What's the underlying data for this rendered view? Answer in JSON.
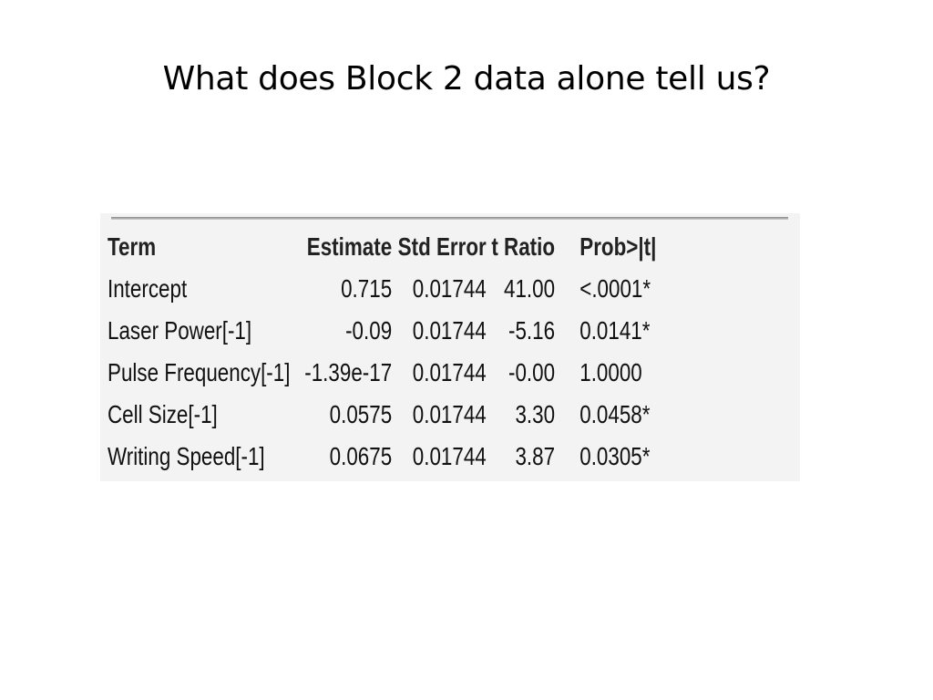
{
  "slide": {
    "title": "What does Block 2 data alone tell us?"
  },
  "table": {
    "headers": {
      "term": "Term",
      "estimate": "Estimate",
      "std_error": "Std Error",
      "t_ratio": "t Ratio",
      "prob": "Prob>|t|"
    },
    "rows": [
      {
        "term": "Intercept",
        "estimate": "0.715",
        "std_error": "0.01744",
        "t_ratio": "41.00",
        "prob": "<.0001*"
      },
      {
        "term": "Laser Power[-1]",
        "estimate": "-0.09",
        "std_error": "0.01744",
        "t_ratio": "-5.16",
        "prob": "0.0141*"
      },
      {
        "term": "Pulse Frequency[-1]",
        "estimate": "-1.39e-17",
        "std_error": "0.01744",
        "t_ratio": "-0.00",
        "prob": "1.0000"
      },
      {
        "term": "Cell Size[-1]",
        "estimate": "0.0575",
        "std_error": "0.01744",
        "t_ratio": "3.30",
        "prob": "0.0458*"
      },
      {
        "term": "Writing Speed[-1]",
        "estimate": "0.0675",
        "std_error": "0.01744",
        "t_ratio": "3.87",
        "prob": "0.0305*"
      }
    ]
  }
}
